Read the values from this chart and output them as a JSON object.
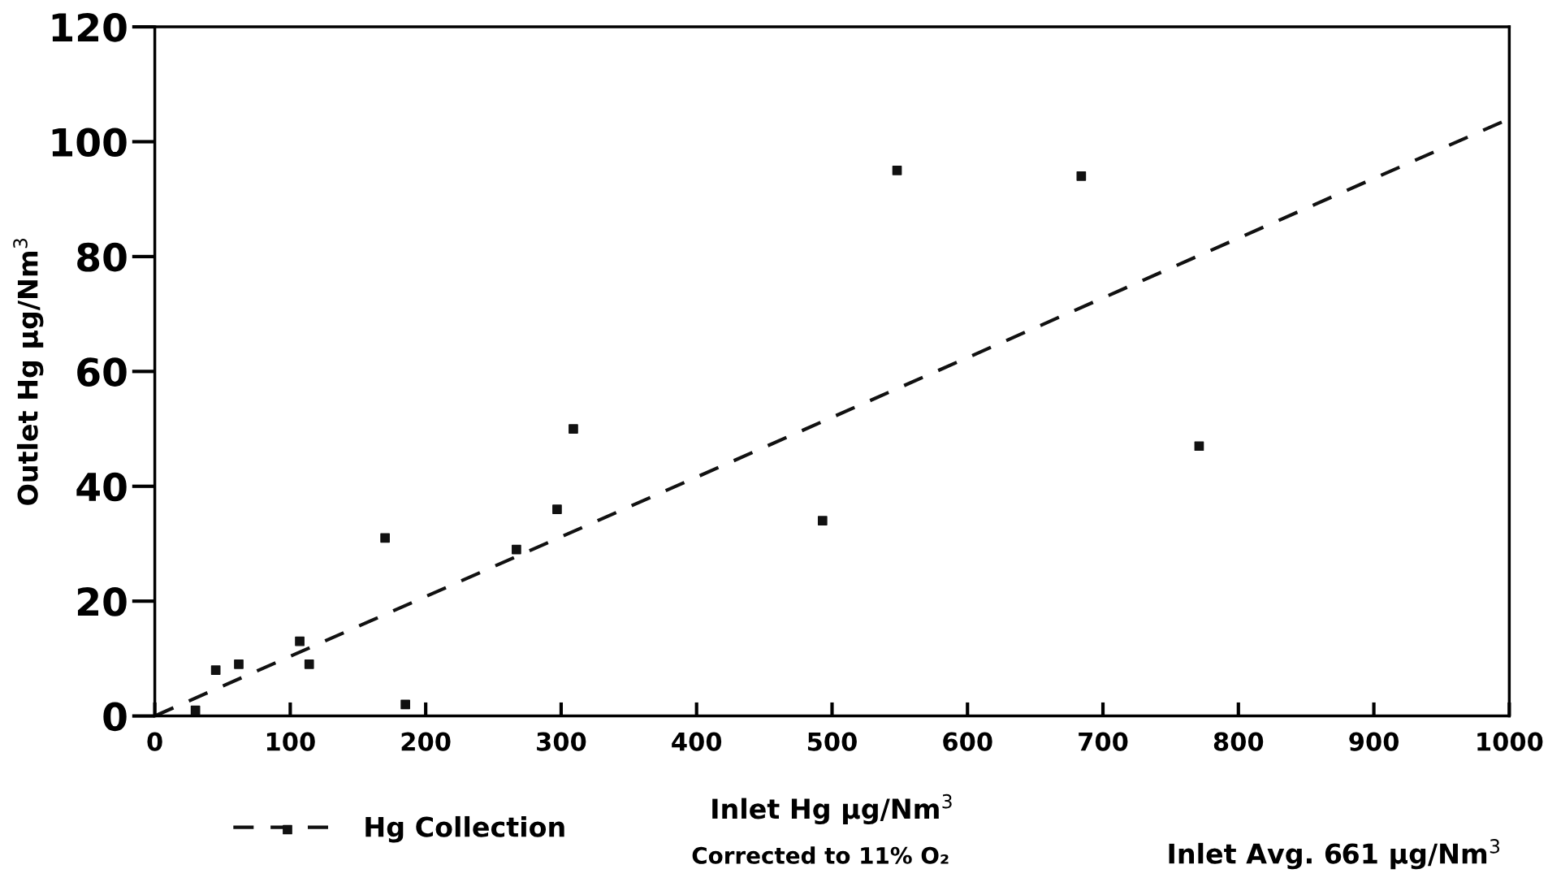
{
  "chart_data": {
    "type": "scatter",
    "xlabel": "Inlet Hg μg/Nm$^{3}$",
    "ylabel": "Outlet Hg μg/Nm$^{3}$",
    "annotations": [
      "Corrected to 11% O₂",
      "Inlet Avg. 661 μg/Nm$^{3}$"
    ],
    "series": [
      {
        "name": "Hg Collection",
        "color": "#111111",
        "x": [
          30,
          45,
          62,
          107,
          114,
          170,
          185,
          267,
          297,
          309,
          493,
          548,
          684,
          771
        ],
        "values": [
          1,
          8,
          9,
          13,
          9,
          31,
          2,
          29,
          36,
          50,
          34,
          95,
          94,
          47
        ]
      },
      {
        "type": "line",
        "marker": "none",
        "color": "#111111",
        "x": [
          0,
          1000
        ],
        "values": [
          0,
          104
        ]
      }
    ],
    "marker": "square",
    "line_style": "dashed",
    "xlim": [
      0,
      1000
    ],
    "xticks": [
      0,
      100,
      200,
      300,
      400,
      500,
      600,
      700,
      800,
      900,
      1000
    ],
    "ylim": [
      0,
      120
    ],
    "yticks": [
      0,
      20,
      40,
      60,
      80,
      100,
      120
    ],
    "grid": false,
    "legend": "bottom left"
  }
}
